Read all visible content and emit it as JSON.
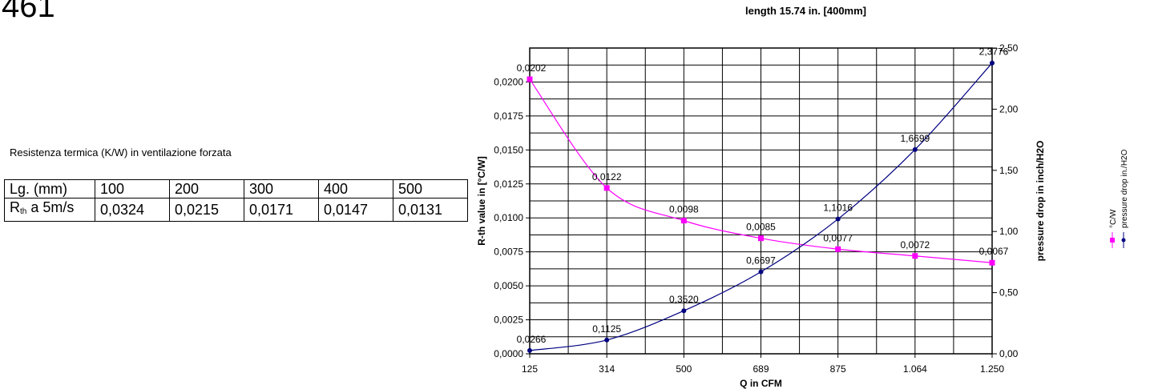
{
  "page_number": "461",
  "table": {
    "caption": "Resistenza termica (K/W) in ventilazione forzata",
    "header_label": "Lg. (mm)",
    "row_label_main": "R",
    "row_label_sub": "th",
    "row_label_rest": " a 5m/s",
    "columns": [
      "100",
      "200",
      "300",
      "400",
      "500"
    ],
    "values": [
      "0,0324",
      "0,0215",
      "0,0171",
      "0,0147",
      "0,0131"
    ]
  },
  "chart_data": {
    "type": "line",
    "title": "length 15.74 in. [400mm]",
    "xlabel": "Q in CFM",
    "ylabel_left": "R-th value in [°C/W]",
    "ylabel_right": "pressure drop in inch/H2O",
    "x_ticks": [
      "125",
      "314",
      "500",
      "689",
      "875",
      "1.064",
      "1.250"
    ],
    "y_left_range": [
      0,
      0.0225
    ],
    "y_left_ticks": [
      "0,0000",
      "0,0025",
      "0,0050",
      "0,0075",
      "0,0100",
      "0,0125",
      "0,0150",
      "0,0175",
      "0,0200"
    ],
    "y_right_range": [
      0,
      2.5
    ],
    "y_right_ticks": [
      "0,00",
      "0,50",
      "1,00",
      "1,50",
      "2,00",
      "2,50"
    ],
    "grid": true,
    "legend_position": "right",
    "series": [
      {
        "name": "°C/W",
        "axis": "left",
        "color": "#ff00ff",
        "marker": "square",
        "values": [
          0.0202,
          0.0122,
          0.0098,
          0.0085,
          0.0077,
          0.0072,
          0.0067
        ],
        "labels": [
          "0,0202",
          "0,0122",
          "0,0098",
          "0,0085",
          "0,0077",
          "0,0072",
          "0,0067"
        ]
      },
      {
        "name": "pressure drop in./H2O",
        "axis": "right",
        "color": "#000080",
        "marker": "diamond",
        "values": [
          0.0266,
          0.1125,
          0.352,
          0.6697,
          1.1016,
          1.6699,
          2.3776
        ],
        "labels": [
          "0,0266",
          "0,1125",
          "0,3520",
          "0,6697",
          "1,1016",
          "1,6699",
          "2,3776"
        ]
      }
    ]
  }
}
